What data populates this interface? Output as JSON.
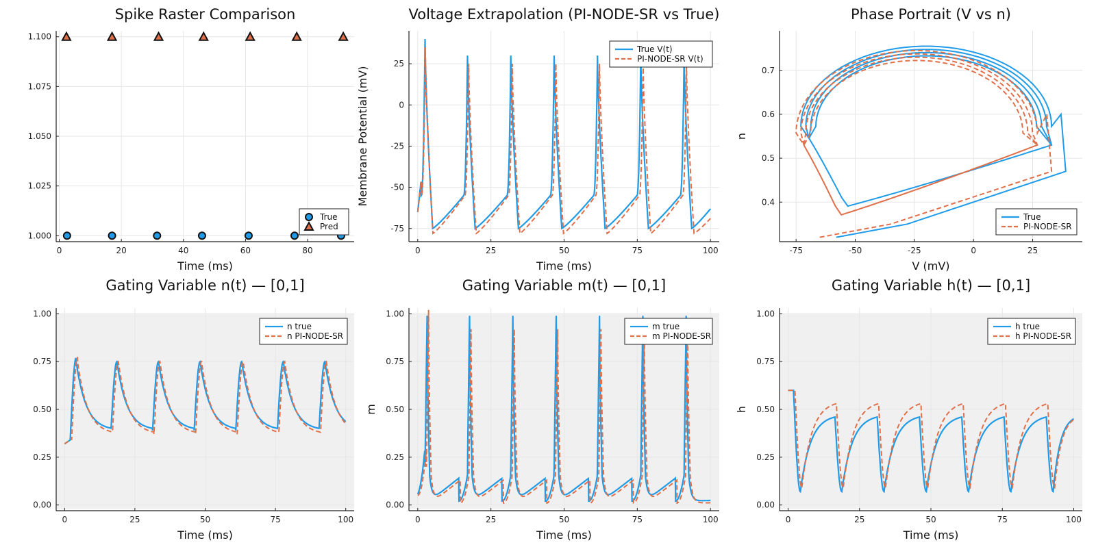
{
  "figure": {
    "colors": {
      "true": "#1f9be8",
      "pred": "#e0704a",
      "gray_bg": "#f0f0f0",
      "grid": "#e6e6e6"
    },
    "panels": [
      {
        "id": "raster",
        "title": "Spike Raster Comparison",
        "xlabel": "Time (ms)",
        "ylabel": "",
        "xticks": [
          0,
          20,
          40,
          60,
          80
        ],
        "yticks": [
          1.0,
          1.025,
          1.05,
          1.075,
          1.1
        ],
        "ytick_labels": [
          "1.000",
          "1.025",
          "1.050",
          "1.075",
          "1.100"
        ],
        "xlim": [
          -1,
          95
        ],
        "ylim": [
          0.997,
          1.103
        ],
        "gray_bg": false,
        "legend": [
          "True",
          "Pred"
        ]
      },
      {
        "id": "voltage",
        "title": "Voltage Extrapolation (PI-NODE-SR vs True)",
        "xlabel": "Time (ms)",
        "ylabel": "Membrane Potential (mV)",
        "xticks": [
          0,
          25,
          50,
          75,
          100
        ],
        "yticks": [
          -75,
          -50,
          -25,
          0,
          25
        ],
        "ytick_labels": [
          "-75",
          "-50",
          "-25",
          "0",
          "25"
        ],
        "xlim": [
          -3,
          103
        ],
        "ylim": [
          -83,
          45
        ],
        "gray_bg": false,
        "legend": [
          "True V(t)",
          "PI-NODE-SR V(t)"
        ]
      },
      {
        "id": "phase",
        "title": "Phase Portrait (V vs n)",
        "xlabel": "V (mV)",
        "ylabel": "n",
        "xticks": [
          -75,
          -50,
          -25,
          0,
          25
        ],
        "yticks": [
          0.4,
          0.5,
          0.6,
          0.7
        ],
        "ytick_labels": [
          "0.4",
          "0.5",
          "0.6",
          "0.7"
        ],
        "xlim": [
          -82,
          46
        ],
        "ylim": [
          0.31,
          0.79
        ],
        "gray_bg": false,
        "legend": [
          "True",
          "PI-NODE-SR"
        ]
      },
      {
        "id": "n",
        "title": "Gating Variable n(t) — [0,1]",
        "xlabel": "Time (ms)",
        "ylabel": "",
        "xticks": [
          0,
          25,
          50,
          75,
          100
        ],
        "yticks": [
          0,
          0.25,
          0.5,
          0.75,
          1.0
        ],
        "ytick_labels": [
          "0.00",
          "0.25",
          "0.50",
          "0.75",
          "1.00"
        ],
        "xlim": [
          -3,
          103
        ],
        "ylim": [
          -0.03,
          1.03
        ],
        "gray_bg": true,
        "legend": [
          "n true",
          "n PI-NODE-SR"
        ]
      },
      {
        "id": "m",
        "title": "Gating Variable m(t) — [0,1]",
        "xlabel": "Time (ms)",
        "ylabel": "m",
        "xticks": [
          0,
          25,
          50,
          75,
          100
        ],
        "yticks": [
          0,
          0.25,
          0.5,
          0.75,
          1.0
        ],
        "ytick_labels": [
          "0.00",
          "0.25",
          "0.50",
          "0.75",
          "1.00"
        ],
        "xlim": [
          -3,
          103
        ],
        "ylim": [
          -0.03,
          1.03
        ],
        "gray_bg": true,
        "legend": [
          "m true",
          "m PI-NODE-SR"
        ]
      },
      {
        "id": "h",
        "title": "Gating Variable h(t) — [0,1]",
        "xlabel": "Time (ms)",
        "ylabel": "h",
        "xticks": [
          0,
          25,
          50,
          75,
          100
        ],
        "yticks": [
          0,
          0.25,
          0.5,
          0.75,
          1.0
        ],
        "ytick_labels": [
          "0.00",
          "0.25",
          "0.50",
          "0.75",
          "1.00"
        ],
        "xlim": [
          -3,
          103
        ],
        "ylim": [
          -0.03,
          1.03
        ],
        "gray_bg": true,
        "legend": [
          "h true",
          "h PI-NODE-SR"
        ]
      }
    ]
  },
  "chart_data": [
    {
      "type": "scatter",
      "title": "Spike Raster Comparison",
      "xlabel": "Time (ms)",
      "ylabel": "",
      "xlim": [
        -1,
        95
      ],
      "ylim": [
        0.997,
        1.103
      ],
      "grid": true,
      "legend_position": "bottom-right",
      "series": [
        {
          "name": "True",
          "marker": "circle",
          "x": [
            2.5,
            17,
            31.5,
            46,
            61,
            75.8,
            90.8
          ],
          "y": [
            1.0,
            1.0,
            1.0,
            1.0,
            1.0,
            1.0,
            1.0
          ]
        },
        {
          "name": "Pred",
          "marker": "triangle",
          "x": [
            2.3,
            17,
            32,
            46.5,
            61.5,
            76.5,
            91.5
          ],
          "y": [
            1.1,
            1.1,
            1.1,
            1.1,
            1.1,
            1.1,
            1.1
          ]
        }
      ]
    },
    {
      "type": "line",
      "title": "Voltage Extrapolation (PI-NODE-SR vs True)",
      "xlabel": "Time (ms)",
      "ylabel": "Membrane Potential (mV)",
      "xlim": [
        -3,
        103
      ],
      "ylim": [
        -83,
        45
      ],
      "grid": true,
      "legend_position": "top-right",
      "series": [
        {
          "name": "True V(t)",
          "spike_times": [
            2.5,
            17.0,
            31.8,
            46.6,
            61.4,
            76.2,
            91.0
          ],
          "peak": 30,
          "rest_min": -75,
          "v_start": -65,
          "v_end": -62
        },
        {
          "name": "PI-NODE-SR V(t)",
          "spike_times": [
            2.6,
            17.4,
            32.3,
            47.2,
            62.1,
            77.0,
            91.8
          ],
          "peak": 25,
          "rest_min": -78,
          "v_start": -65,
          "v_end": -68
        }
      ]
    },
    {
      "type": "line",
      "title": "Phase Portrait (V vs n)",
      "xlabel": "V (mV)",
      "ylabel": "n",
      "xlim": [
        -82,
        46
      ],
      "ylim": [
        0.31,
        0.79
      ],
      "grid": true,
      "legend_position": "bottom-right",
      "series": [
        {
          "name": "True",
          "cycle": {
            "v_min": -73,
            "v_max": 33,
            "n_min": 0.39,
            "n_max": 0.755
          },
          "transient_start": [
            -58,
            0.32
          ]
        },
        {
          "name": "PI-NODE-SR",
          "cycle": {
            "v_min": -75,
            "v_max": 27,
            "n_min": 0.37,
            "n_max": 0.745
          },
          "transient_start": [
            -65,
            0.32
          ]
        }
      ]
    },
    {
      "type": "line",
      "title": "Gating Variable n(t) — [0,1]",
      "xlabel": "Time (ms)",
      "ylabel": "",
      "xlim": [
        -3,
        103
      ],
      "ylim": [
        -0.03,
        1.03
      ],
      "grid": true,
      "legend_position": "top-right",
      "series": [
        {
          "name": "n true",
          "start": 0.32,
          "peak": 0.75,
          "trough": 0.39,
          "end": 0.39
        },
        {
          "name": "n PI-NODE-SR",
          "start": 0.32,
          "peak": 0.75,
          "trough": 0.37,
          "end": 0.4
        }
      ]
    },
    {
      "type": "line",
      "title": "Gating Variable m(t) — [0,1]",
      "xlabel": "Time (ms)",
      "ylabel": "m",
      "xlim": [
        -3,
        103
      ],
      "ylim": [
        -0.03,
        1.03
      ],
      "grid": true,
      "legend_position": "top-right",
      "series": [
        {
          "name": "m true",
          "start": 0.05,
          "peak": 0.99,
          "trough": 0.02,
          "end": 0.07
        },
        {
          "name": "m PI-NODE-SR",
          "start": 0.05,
          "peak": 0.92,
          "trough": 0.01,
          "end": 0.03
        }
      ]
    },
    {
      "type": "line",
      "title": "Gating Variable h(t) — [0,1]",
      "xlabel": "Time (ms)",
      "ylabel": "h",
      "xlim": [
        -3,
        103
      ],
      "ylim": [
        -0.03,
        1.03
      ],
      "grid": true,
      "legend_position": "top-right",
      "series": [
        {
          "name": "h true",
          "start": 0.6,
          "peak": 0.46,
          "trough": 0.07,
          "end": 0.46
        },
        {
          "name": "h PI-NODE-SR",
          "start": 0.6,
          "peak": 0.53,
          "trough": 0.09,
          "end": 0.46
        }
      ]
    }
  ]
}
